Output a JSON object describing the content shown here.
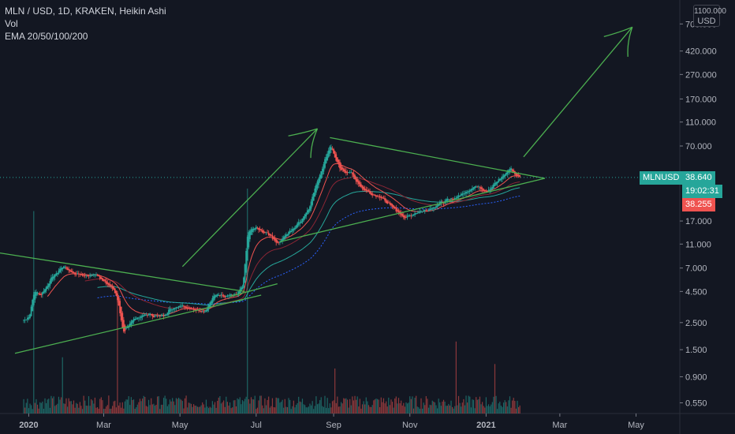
{
  "legend": {
    "line1": "MLN / USD, 1D, KRAKEN, Heikin Ashi",
    "line2": "Vol",
    "line3": "EMA 20/50/100/200"
  },
  "currency": {
    "top": "1100.000",
    "label": "USD"
  },
  "colors": {
    "background": "#131722",
    "up": "#26a69a",
    "down": "#ef5350",
    "trendline": "#4caf50",
    "ema20": "#ef5350",
    "ema50": "#8b2635",
    "ema100": "#26a69a",
    "ema200": "#2962ff"
  },
  "tags": {
    "symbol": "MLNUSD",
    "price": "38.640",
    "countdown": "19:02:31",
    "ema_value": "38.255"
  },
  "chart_data": {
    "type": "candlestick",
    "title": "MLN / USD, 1D, KRAKEN, Heikin Ashi",
    "y_scale": "log",
    "ylim": [
      0.45,
      1100
    ],
    "y_ticks": [
      {
        "value": 700,
        "label": "700.000"
      },
      {
        "value": 420,
        "label": "420.000"
      },
      {
        "value": 270,
        "label": "270.000"
      },
      {
        "value": 170,
        "label": "170.000"
      },
      {
        "value": 110,
        "label": "110.000"
      },
      {
        "value": 70,
        "label": "70.000"
      },
      {
        "value": 17,
        "label": "17.000"
      },
      {
        "value": 11,
        "label": "11.000"
      },
      {
        "value": 7,
        "label": "7.000"
      },
      {
        "value": 4.5,
        "label": "4.500"
      },
      {
        "value": 2.5,
        "label": "2.500"
      },
      {
        "value": 1.5,
        "label": "1.500"
      },
      {
        "value": 0.9,
        "label": "0.900"
      },
      {
        "value": 0.55,
        "label": "0.550"
      }
    ],
    "x_range": [
      "2019-12-09",
      "2021-06-05"
    ],
    "x_ticks": [
      {
        "date": "2020-01-01",
        "label": "2020",
        "bold": true
      },
      {
        "date": "2020-03-01",
        "label": "Mar"
      },
      {
        "date": "2020-05-01",
        "label": "May"
      },
      {
        "date": "2020-07-01",
        "label": "Jul"
      },
      {
        "date": "2020-09-01",
        "label": "Sep"
      },
      {
        "date": "2020-11-01",
        "label": "Nov"
      },
      {
        "date": "2021-01-01",
        "label": "2021",
        "bold": true
      },
      {
        "date": "2021-03-01",
        "label": "Mar"
      },
      {
        "date": "2021-05-01",
        "label": "May"
      }
    ],
    "price_path": [
      [
        "2019-12-27",
        2.6
      ],
      [
        "2020-01-01",
        2.8
      ],
      [
        "2020-01-05",
        4.5
      ],
      [
        "2020-01-10",
        4.2
      ],
      [
        "2020-01-20",
        6.0
      ],
      [
        "2020-01-28",
        7.2
      ],
      [
        "2020-02-05",
        6.4
      ],
      [
        "2020-02-15",
        6.0
      ],
      [
        "2020-02-22",
        6.3
      ],
      [
        "2020-03-01",
        5.4
      ],
      [
        "2020-03-08",
        4.8
      ],
      [
        "2020-03-12",
        3.6
      ],
      [
        "2020-03-16",
        2.1
      ],
      [
        "2020-03-25",
        2.7
      ],
      [
        "2020-04-05",
        2.9
      ],
      [
        "2020-04-15",
        2.8
      ],
      [
        "2020-04-25",
        3.3
      ],
      [
        "2020-05-01",
        3.5
      ],
      [
        "2020-05-12",
        3.2
      ],
      [
        "2020-05-20",
        3.0
      ],
      [
        "2020-05-28",
        4.3
      ],
      [
        "2020-06-05",
        4.1
      ],
      [
        "2020-06-15",
        4.2
      ],
      [
        "2020-06-20",
        5.0
      ],
      [
        "2020-06-24",
        14.0
      ],
      [
        "2020-06-30",
        15.0
      ],
      [
        "2020-07-05",
        14.0
      ],
      [
        "2020-07-12",
        13.0
      ],
      [
        "2020-07-18",
        11.0
      ],
      [
        "2020-07-22",
        12.5
      ],
      [
        "2020-07-28",
        14.0
      ],
      [
        "2020-08-05",
        17.0
      ],
      [
        "2020-08-12",
        22.0
      ],
      [
        "2020-08-18",
        35.0
      ],
      [
        "2020-08-25",
        55.0
      ],
      [
        "2020-08-29",
        72.0
      ],
      [
        "2020-09-02",
        55.0
      ],
      [
        "2020-09-06",
        44.0
      ],
      [
        "2020-09-15",
        42.0
      ],
      [
        "2020-09-22",
        32.0
      ],
      [
        "2020-10-01",
        28.0
      ],
      [
        "2020-10-10",
        26.0
      ],
      [
        "2020-10-20",
        21.0
      ],
      [
        "2020-10-28",
        18.0
      ],
      [
        "2020-11-05",
        20.0
      ],
      [
        "2020-11-15",
        21.0
      ],
      [
        "2020-11-25",
        24.0
      ],
      [
        "2020-12-05",
        26.0
      ],
      [
        "2020-12-15",
        29.0
      ],
      [
        "2020-12-22",
        33.0
      ],
      [
        "2021-01-01",
        30.0
      ],
      [
        "2021-01-10",
        36.0
      ],
      [
        "2021-01-20",
        46.0
      ],
      [
        "2021-01-25",
        40.0
      ],
      [
        "2021-01-28",
        38.64
      ]
    ],
    "trendlines": [
      {
        "from": [
          "2019-12-03",
          9.5
        ],
        "to": [
          "2020-06-22",
          4.5
        ]
      },
      {
        "from": [
          "2019-12-21",
          1.4
        ],
        "to": [
          "2020-07-05",
          4.2
        ]
      },
      {
        "from": [
          "2020-06-10",
          4.1
        ],
        "to": [
          "2020-07-18",
          5.2
        ]
      },
      {
        "from": [
          "2020-07-20",
          11.5
        ],
        "to": [
          "2021-02-17",
          38.0
        ]
      },
      {
        "from": [
          "2020-08-29",
          82.0
        ],
        "to": [
          "2021-02-17",
          38.0
        ]
      }
    ],
    "arrows": [
      {
        "from": [
          "2020-05-03",
          7.2
        ],
        "to": [
          "2020-08-19",
          97.0
        ]
      },
      {
        "from": [
          "2021-01-31",
          57.0
        ],
        "to": [
          "2021-04-28",
          660.0
        ]
      }
    ],
    "volume_spikes": [
      [
        "2020-01-05",
        0.9
      ],
      [
        "2020-01-28",
        0.25
      ],
      [
        "2020-03-12",
        0.5
      ],
      [
        "2020-06-24",
        1.0
      ],
      [
        "2020-09-02",
        0.2
      ],
      [
        "2020-12-08",
        0.32
      ],
      [
        "2021-01-08",
        0.22
      ]
    ]
  }
}
